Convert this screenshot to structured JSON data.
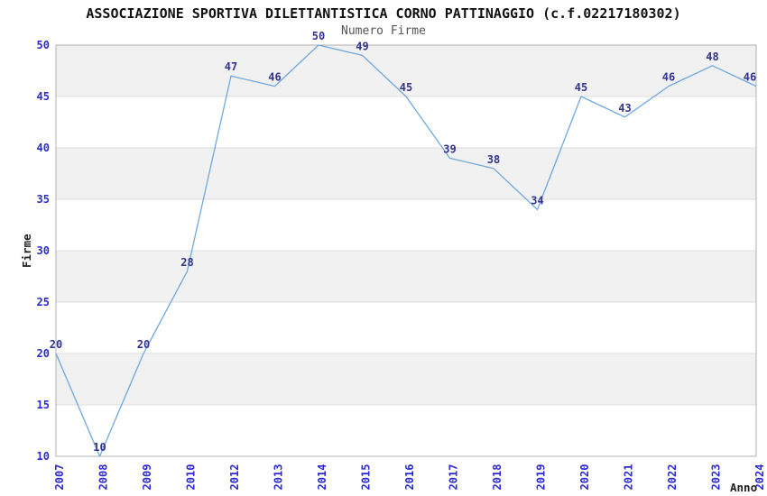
{
  "header": {
    "title": "ASSOCIAZIONE SPORTIVA DILETTANTISTICA CORNO PATTINAGGIO (c.f.02217180302)",
    "subtitle": "Numero Firme"
  },
  "chart_data": {
    "type": "line",
    "title": "Numero Firme",
    "xlabel": "Anno",
    "ylabel": "Firme",
    "categories": [
      "2007",
      "2008",
      "2009",
      "2010",
      "2012",
      "2013",
      "2014",
      "2015",
      "2016",
      "2017",
      "2018",
      "2019",
      "2020",
      "2021",
      "2022",
      "2023",
      "2024"
    ],
    "values": [
      20,
      10,
      20,
      28,
      47,
      46,
      50,
      49,
      45,
      39,
      38,
      34,
      45,
      43,
      46,
      48,
      46
    ],
    "ylim": [
      10,
      50
    ],
    "yticks": [
      10,
      15,
      20,
      25,
      30,
      35,
      40,
      45,
      50
    ],
    "grid": true,
    "legend": "none",
    "colors": {
      "line": "#6fa8e0",
      "data_label": "#333390",
      "tick_label": "#2a2ad0",
      "band_gray": "#f1f1f1",
      "band_white": "#ffffff",
      "gridline": "#dedede",
      "border": "#b0b0b0",
      "title": "#111111",
      "subtitle": "#555555",
      "axis_title": "#222222"
    }
  }
}
